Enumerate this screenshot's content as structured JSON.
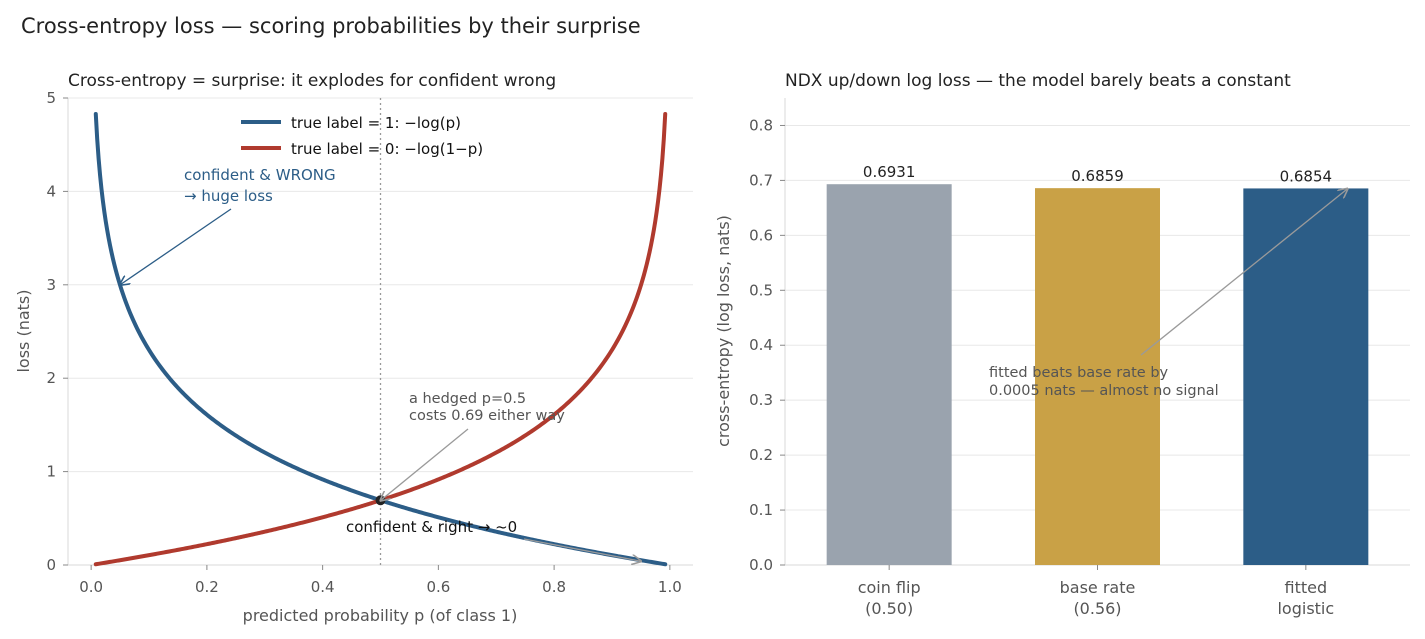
{
  "suptitle": "Cross-entropy loss — scoring probabilities by their surprise",
  "colors": {
    "blue": "#2c5d87",
    "red": "#b03a2e",
    "grey": "#9aa3ae",
    "gold": "#c9a146",
    "dark": "#222222"
  },
  "chart_data": [
    {
      "type": "line",
      "title": "Cross-entropy = surprise: it explodes for confident wrong",
      "xlabel": "predicted probability p (of class 1)",
      "ylabel": "loss  (nats)",
      "xlim": [
        -0.04,
        1.04
      ],
      "ylim": [
        0,
        5
      ],
      "xticks": [
        0.0,
        0.2,
        0.4,
        0.6,
        0.8,
        1.0
      ],
      "xtick_labels": [
        "0.0",
        "0.2",
        "0.4",
        "0.6",
        "0.8",
        "1.0"
      ],
      "yticks": [
        0,
        1,
        2,
        3,
        4,
        5
      ],
      "ytick_labels": [
        "0",
        "1",
        "2",
        "3",
        "4",
        "5"
      ],
      "grid": "horizontal",
      "legend_position": "top-center",
      "p_range": [
        0.008,
        0.992
      ],
      "series": [
        {
          "name": "true label = 1:  −log(p)",
          "formula": "-ln(p)",
          "color": "#2c5d87"
        },
        {
          "name": "true label = 0:  −log(1−p)",
          "formula": "-ln(1-p)",
          "color": "#b03a2e"
        }
      ],
      "vline_x": 0.5,
      "point": {
        "x": 0.5,
        "y": 0.6931
      },
      "annotations": [
        {
          "lines": [
            "confident & WRONG",
            "→ huge loss"
          ],
          "text_at": [
            0.16,
            4.15
          ],
          "arrow_to": [
            0.05,
            3.0
          ]
        },
        {
          "lines": [
            "a hedged p=0.5",
            "costs 0.69 either way"
          ],
          "text_at": [
            0.55,
            1.7
          ],
          "arrow_to": [
            0.5,
            0.69
          ]
        },
        {
          "lines": [
            "confident & right → ~0"
          ],
          "text_at": [
            0.44,
            0.35
          ],
          "arrow_to": [
            0.95,
            0.04
          ]
        }
      ]
    },
    {
      "type": "bar",
      "title": "NDX up/down log loss — the model barely beats a constant",
      "ylabel": "cross-entropy (log loss, nats)",
      "categories": [
        [
          "coin flip",
          "(0.50)"
        ],
        [
          "base rate",
          "(0.56)"
        ],
        [
          "fitted",
          "logistic"
        ]
      ],
      "values": [
        0.6931,
        0.6859,
        0.6854
      ],
      "value_labels": [
        "0.6931",
        "0.6859",
        "0.6854"
      ],
      "bar_colors": [
        "#9aa3ae",
        "#c9a146",
        "#2c5d87"
      ],
      "ylim": [
        0,
        0.85
      ],
      "yticks": [
        0.0,
        0.1,
        0.2,
        0.3,
        0.4,
        0.5,
        0.6,
        0.7,
        0.8
      ],
      "ytick_labels": [
        "0.0",
        "0.1",
        "0.2",
        "0.3",
        "0.4",
        "0.5",
        "0.6",
        "0.7",
        "0.8"
      ],
      "grid": "horizontal",
      "annotation": {
        "lines": [
          "fitted beats base rate by",
          "0.0005 nats — almost no signal"
        ],
        "text_at": [
          0.5,
          0.34
        ],
        "arrow_to": [
          2.2,
          0.685
        ]
      }
    }
  ]
}
